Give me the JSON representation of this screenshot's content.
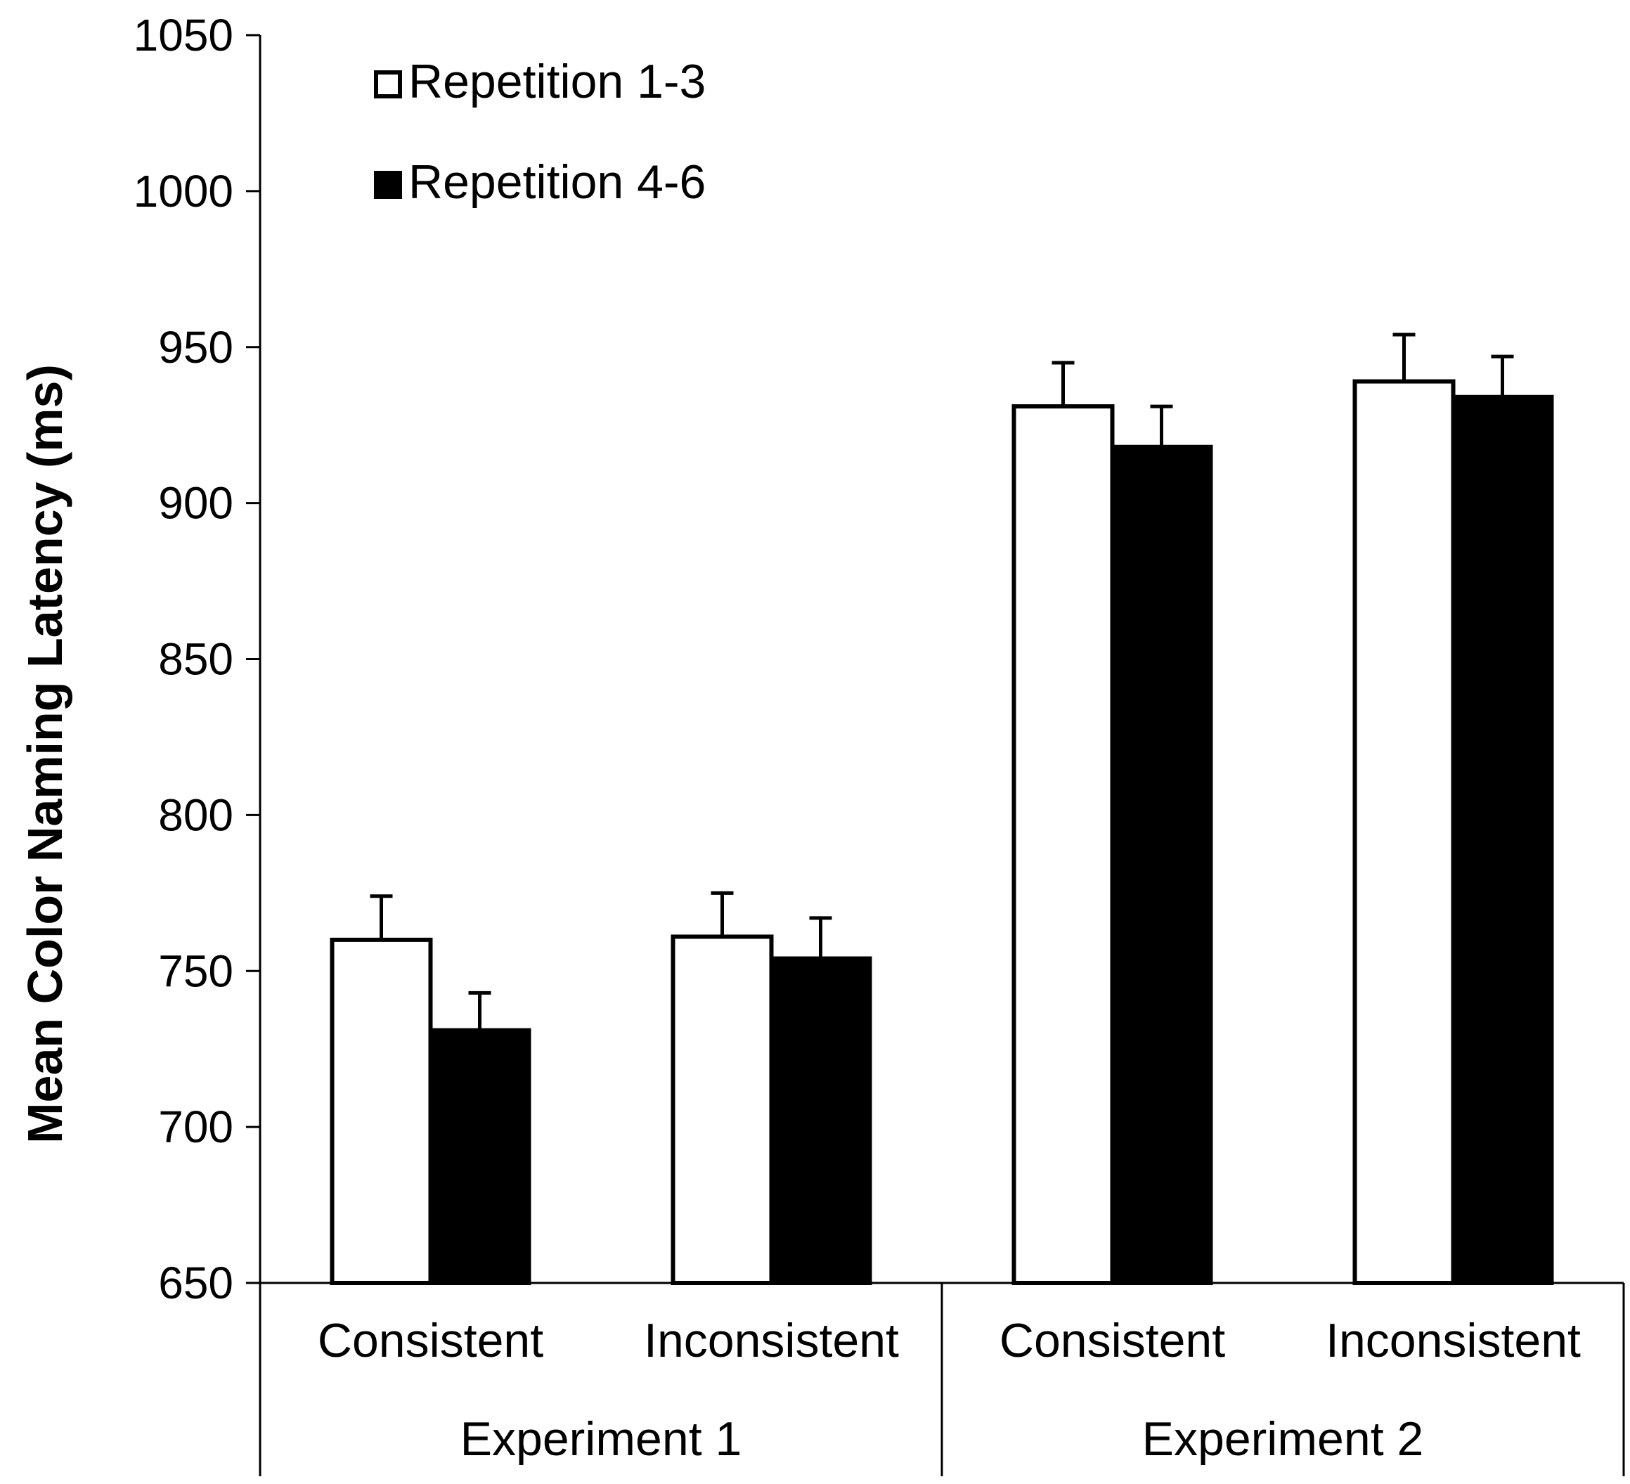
{
  "chart_data": {
    "type": "bar",
    "title": "",
    "xlabel": "",
    "ylabel": "Mean Color Naming Latency (ms)",
    "ylim": [
      650,
      1050
    ],
    "yticks": [
      650,
      700,
      750,
      800,
      850,
      900,
      950,
      1000,
      1050
    ],
    "grid": false,
    "legend_position": "top-left",
    "groups": [
      {
        "label": "Experiment 1",
        "categories": [
          "Consistent",
          "Inconsistent"
        ]
      },
      {
        "label": "Experiment 2",
        "categories": [
          "Consistent",
          "Inconsistent"
        ]
      }
    ],
    "categories": [
      "Consistent",
      "Inconsistent",
      "Consistent",
      "Inconsistent"
    ],
    "series": [
      {
        "name": "Repetition 1-3",
        "fill": "#ffffff",
        "stroke": "#000000",
        "values": [
          760,
          761,
          931,
          939
        ],
        "errors": [
          14,
          14,
          14,
          15
        ]
      },
      {
        "name": "Repetition 4-6",
        "fill": "#000000",
        "stroke": "#000000",
        "values": [
          731,
          754,
          918,
          934
        ],
        "errors": [
          12,
          13,
          13,
          13
        ]
      }
    ]
  }
}
